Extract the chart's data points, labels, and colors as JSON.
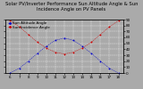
{
  "title": "Solar PV/Inverter Performance Sun Altitude Angle & Sun Incidence Angle on PV Panels",
  "legend": [
    "Sun Altitude Angle --",
    "Sun Incidence Angle --"
  ],
  "legend_colors": [
    "#0000cc",
    "#cc0000"
  ],
  "background_color": "#aaaaaa",
  "plot_bg_color": "#aaaaaa",
  "grid_color": "#ffffff",
  "ylim": [
    0,
    90
  ],
  "yticks": [
    0,
    10,
    20,
    30,
    40,
    50,
    60,
    70,
    80,
    90
  ],
  "x_values": [
    6,
    7,
    8,
    9,
    10,
    11,
    12,
    13,
    14,
    15,
    16,
    17,
    18
  ],
  "x_labels": [
    "6",
    "7",
    "8",
    "9",
    "10",
    "11",
    "12",
    "13",
    "14",
    "15",
    "16",
    "17",
    "18"
  ],
  "sun_altitude": [
    0,
    8,
    20,
    33,
    45,
    55,
    59,
    55,
    45,
    33,
    20,
    8,
    0
  ],
  "sun_incidence": [
    88,
    78,
    65,
    52,
    42,
    35,
    32,
    35,
    42,
    52,
    65,
    78,
    88
  ],
  "title_fontsize": 3.8,
  "tick_fontsize": 3.0,
  "legend_fontsize": 3.0,
  "marker_size": 1.8
}
